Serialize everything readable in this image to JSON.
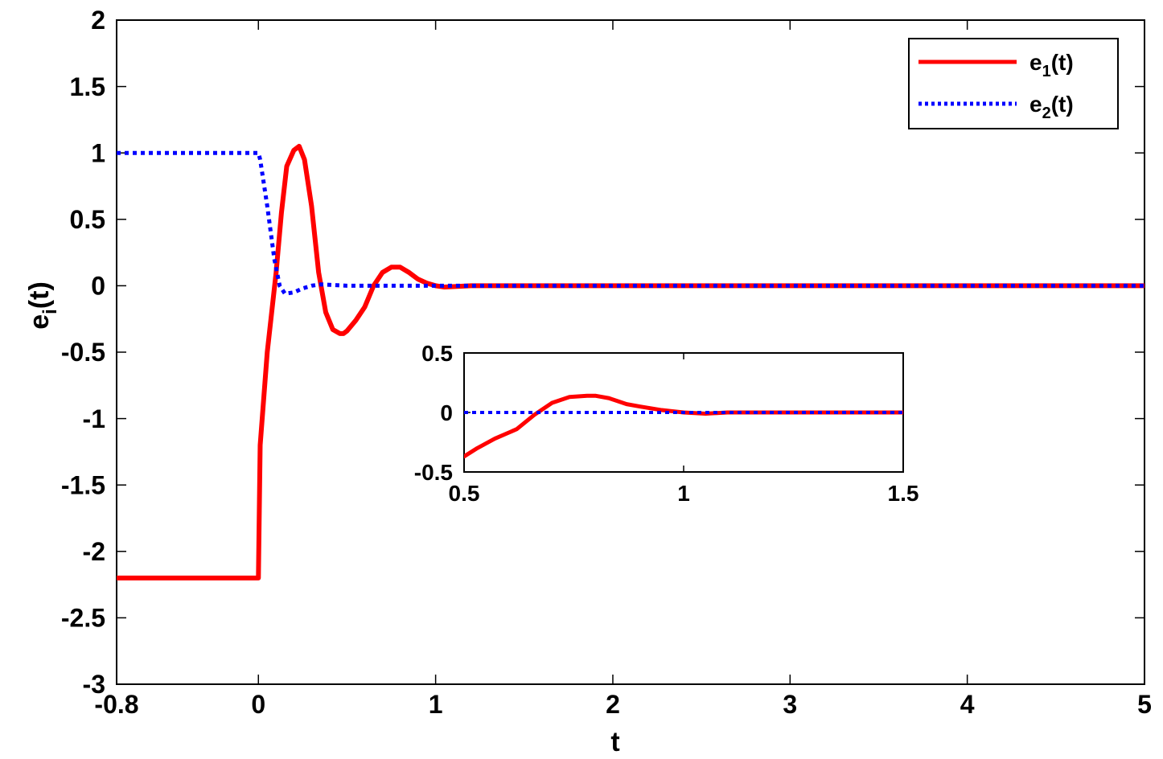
{
  "chart_data": [
    {
      "type": "line",
      "title": "",
      "xlabel": "t",
      "ylabel": "e",
      "ylabel_sub": "i",
      "ylabel_tail": "(t)",
      "xlim": [
        -0.8,
        5
      ],
      "ylim": [
        -3,
        2
      ],
      "xticks": [
        -0.8,
        0,
        1,
        2,
        3,
        4,
        5
      ],
      "xtick_labels": [
        "-0.8",
        "0",
        "1",
        "2",
        "3",
        "4",
        "5"
      ],
      "yticks": [
        -3,
        -2.5,
        -2,
        -1.5,
        -1,
        -0.5,
        0,
        0.5,
        1,
        1.5,
        2
      ],
      "ytick_labels": [
        "-3",
        "-2.5",
        "-2",
        "-1.5",
        "-1",
        "-0.5",
        "0",
        "0.5",
        "1",
        "1.5",
        "2"
      ],
      "grid": false,
      "legend_position": "top-right",
      "series": [
        {
          "name": "e1(t)",
          "legend_main": "e",
          "legend_sub": "1",
          "legend_tail": "(t)",
          "color": "#ff0000",
          "style": "solid",
          "x": [
            -0.8,
            0.0,
            0.01,
            0.05,
            0.1,
            0.13,
            0.16,
            0.2,
            0.23,
            0.26,
            0.3,
            0.34,
            0.38,
            0.42,
            0.46,
            0.48,
            0.5,
            0.55,
            0.6,
            0.65,
            0.7,
            0.75,
            0.8,
            0.85,
            0.9,
            0.95,
            1.0,
            1.05,
            1.2,
            1.5,
            2,
            3,
            4,
            5
          ],
          "y": [
            -2.2,
            -2.2,
            -1.2,
            -0.5,
            0.1,
            0.55,
            0.9,
            1.02,
            1.05,
            0.95,
            0.6,
            0.1,
            -0.2,
            -0.33,
            -0.36,
            -0.36,
            -0.34,
            -0.26,
            -0.16,
            0.0,
            0.1,
            0.14,
            0.14,
            0.1,
            0.05,
            0.02,
            0.0,
            -0.01,
            0.0,
            0.0,
            0.0,
            0.0,
            0.0,
            0.0
          ]
        },
        {
          "name": "e2(t)",
          "legend_main": "e",
          "legend_sub": "2",
          "legend_tail": "(t)",
          "color": "#0000ff",
          "style": "dotted",
          "x": [
            -0.8,
            0.0,
            0.01,
            0.05,
            0.09,
            0.12,
            0.15,
            0.2,
            0.25,
            0.3,
            0.35,
            0.5,
            1.0,
            5
          ],
          "y": [
            1.0,
            1.0,
            0.95,
            0.6,
            0.2,
            0.0,
            -0.06,
            -0.05,
            -0.02,
            0.0,
            0.01,
            0.0,
            0.0,
            0.0
          ]
        }
      ]
    },
    {
      "type": "line",
      "title": "",
      "inset": true,
      "xlim": [
        0.5,
        1.5
      ],
      "ylim": [
        -0.5,
        0.5
      ],
      "xticks": [
        0.5,
        1,
        1.5
      ],
      "xtick_labels": [
        "0.5",
        "1",
        "1.5"
      ],
      "yticks": [
        -0.5,
        0,
        0.5
      ],
      "ytick_labels": [
        "-0.5",
        "0",
        "0.5"
      ],
      "grid": false,
      "series": [
        {
          "color": "#ff0000",
          "style": "solid",
          "x": [
            0.5,
            0.53,
            0.57,
            0.62,
            0.66,
            0.7,
            0.74,
            0.78,
            0.8,
            0.83,
            0.87,
            0.9,
            0.95,
            1.0,
            1.05,
            1.1,
            1.2,
            1.3,
            1.5
          ],
          "y": [
            -0.37,
            -0.3,
            -0.22,
            -0.14,
            -0.02,
            0.08,
            0.13,
            0.14,
            0.14,
            0.12,
            0.07,
            0.05,
            0.02,
            0.0,
            -0.01,
            0.0,
            0.0,
            0.0,
            0.0
          ]
        },
        {
          "color": "#0000ff",
          "style": "dotted",
          "x": [
            0.5,
            1.0,
            1.5
          ],
          "y": [
            0.0,
            0.0,
            0.0
          ]
        }
      ]
    }
  ]
}
